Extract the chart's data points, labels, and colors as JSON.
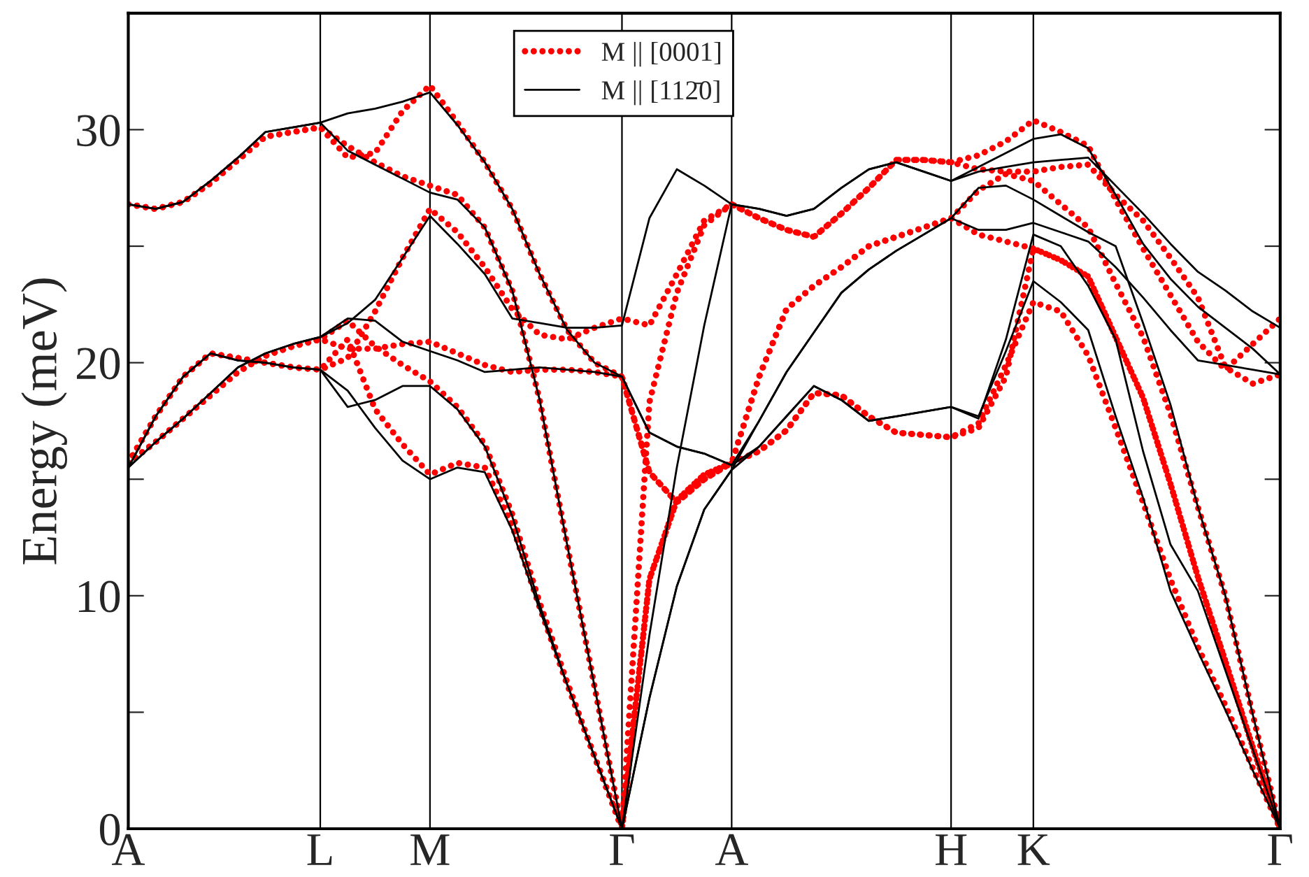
{
  "chart_data": {
    "type": "line",
    "ylabel": "Energy (meV)",
    "ylim": [
      0,
      35
    ],
    "categories": [
      "A",
      null,
      null,
      null,
      null,
      null,
      null,
      "L",
      null,
      null,
      null,
      "M",
      null,
      null,
      null,
      null,
      null,
      null,
      "Γ",
      null,
      null,
      null,
      "A",
      null,
      null,
      null,
      null,
      null,
      null,
      null,
      "H",
      null,
      null,
      "K",
      null,
      null,
      null,
      null,
      null,
      null,
      null,
      null,
      "Γ"
    ],
    "yticks": [
      0,
      {
        "value": 5,
        "label": null
      },
      10,
      {
        "value": 15,
        "label": null
      },
      20,
      {
        "value": 25,
        "label": null
      },
      30
    ],
    "legend": "top",
    "grid": "x",
    "series": [
      {
        "name": "M || [0001]",
        "color": "#ff0000",
        "line_style": "dotted",
        "values": [
          15.7,
          17.7,
          19.4,
          20.4,
          20.2,
          20.0,
          19.8,
          19.7,
          21.0,
          18.0,
          16.5,
          15.2,
          15.7,
          15.5,
          13.0,
          9.5,
          6.2,
          3.1,
          0,
          10.7,
          14.1,
          15.2,
          15.7,
          16.2,
          17.1,
          18.7,
          18.6,
          17.7,
          17.0,
          16.9,
          16.8,
          17.2,
          19.4,
          24.9,
          24.4,
          23.7,
          21.1,
          18.5,
          14.8,
          10.8,
          7.2,
          3.5,
          0
        ]
      },
      {
        "color": "#ff0000",
        "line_style": "dotted",
        "values": [
          15.7,
          17.7,
          19.4,
          20.4,
          20.2,
          20.0,
          19.8,
          19.7,
          20.2,
          22.2,
          24.5,
          26.6,
          25.6,
          24.1,
          22.3,
          21.2,
          21.0,
          21.5,
          21.9,
          21.6,
          23.8,
          26.1,
          26.8,
          26.2,
          25.7,
          25.4,
          26.4,
          27.5,
          28.7,
          28.7,
          28.6,
          28.9,
          29.5,
          30.4,
          29.9,
          29.3,
          27.0,
          24.9,
          22.9,
          20.9,
          19.7,
          20.8,
          21.9
        ]
      },
      {
        "color": "#ff0000",
        "line_style": "dotted",
        "values": [
          15.7,
          16.6,
          17.6,
          18.6,
          19.6,
          20.3,
          20.7,
          21.0,
          21.8,
          20.7,
          19.9,
          19.2,
          18.1,
          16.5,
          13.5,
          9.7,
          6.3,
          3.1,
          0,
          18.3,
          23.0,
          25.9,
          26.8,
          26.2,
          25.7,
          25.4,
          26.4,
          27.5,
          28.7,
          28.7,
          28.6,
          28.3,
          28.2,
          28.2,
          28.4,
          28.5,
          27.2,
          26.1,
          24.5,
          22.8,
          19.8,
          19.1,
          19.5
        ]
      },
      {
        "color": "#ff0000",
        "line_style": "dotted",
        "values": [
          15.7,
          16.6,
          17.6,
          18.6,
          19.6,
          20.3,
          20.7,
          21.0,
          20.6,
          20.6,
          20.8,
          20.9,
          20.4,
          19.9,
          19.6,
          19.7,
          19.7,
          19.6,
          19.4,
          15.3,
          14.0,
          15.0,
          15.7,
          19.4,
          22.3,
          23.3,
          24.1,
          25.0,
          25.4,
          25.8,
          26.2,
          27.4,
          28.1,
          27.8,
          26.8,
          25.8,
          23.4,
          21.1,
          17.8,
          13.8,
          10,
          4.9,
          0
        ]
      },
      {
        "color": "#ff0000",
        "line_style": "dotted",
        "values": [
          26.8,
          26.6,
          26.9,
          27.7,
          28.7,
          29.7,
          29.9,
          30.1,
          28.8,
          29.0,
          30.8,
          31.9,
          30.3,
          28.6,
          26.6,
          23.8,
          21.4,
          20.0,
          19.4,
          15.3,
          14.0,
          15.0,
          15.7,
          16.2,
          17.1,
          18.7,
          18.6,
          17.7,
          17.0,
          16.9,
          16.8,
          17.4,
          19.9,
          22.6,
          22.2,
          20.3,
          17.2,
          14.0,
          10.7,
          7.8,
          5.3,
          2.6,
          0
        ]
      },
      {
        "color": "#ff0000",
        "line_style": "dotted",
        "values": [
          26.8,
          26.6,
          26.9,
          27.7,
          28.7,
          29.7,
          29.9,
          30.1,
          29.3,
          28.6,
          28.0,
          27.6,
          27.2,
          25.8,
          23.1,
          18.4,
          12.2,
          6.1,
          0,
          10.7,
          14.1,
          15.2,
          15.7,
          19.4,
          22.3,
          23.3,
          24.1,
          25.0,
          25.4,
          25.8,
          26.2,
          25.5,
          25.2,
          24.9,
          24.4,
          23.7,
          21.1,
          18.5,
          14.8,
          10.8,
          7.2,
          3.5,
          0
        ]
      },
      {
        "name": "M || [112̄0]",
        "color": "#000000",
        "line_style": "solid",
        "values": [
          15.5,
          17.7,
          19.4,
          20.4,
          20.1,
          20.0,
          19.8,
          19.7,
          18.8,
          17.2,
          15.8,
          15.0,
          15.5,
          15.3,
          12.8,
          9.4,
          6.2,
          3.1,
          0,
          5.6,
          10.4,
          13.7,
          15.4,
          16.4,
          17.7,
          19.0,
          18.4,
          17.5,
          17.7,
          17.9,
          18.1,
          17.6,
          21.0,
          25.5,
          25.0,
          23.3,
          21.0,
          16.2,
          12.2,
          10.2,
          6.8,
          3.4,
          0
        ]
      },
      {
        "color": "#000000",
        "line_style": "solid",
        "values": [
          15.5,
          17.7,
          19.4,
          20.4,
          20.1,
          20.0,
          19.8,
          19.7,
          18.1,
          18.4,
          19.0,
          19.0,
          18.0,
          16.4,
          13.4,
          9.6,
          6.2,
          3.1,
          0,
          8.3,
          15.5,
          21.6,
          26.8,
          26.6,
          26.3,
          26.6,
          27.5,
          28.3,
          28.6,
          28.2,
          27.8,
          28.4,
          29.0,
          29.6,
          29.8,
          29.2,
          27.2,
          25.1,
          23.6,
          22.4,
          21.5,
          20.6,
          19.5
        ]
      },
      {
        "color": "#000000",
        "line_style": "solid",
        "values": [
          15.5,
          16.6,
          17.6,
          18.7,
          19.8,
          20.4,
          20.8,
          21.1,
          21.7,
          22.7,
          24.5,
          26.3,
          25.1,
          23.8,
          21.9,
          21.7,
          21.5,
          21.5,
          21.6,
          26.2,
          28.3,
          27.6,
          26.8,
          26.6,
          26.3,
          26.6,
          27.5,
          28.3,
          28.6,
          28.2,
          27.8,
          28.2,
          28.4,
          28.6,
          28.7,
          28.8,
          27.6,
          26.4,
          25.1,
          23.9,
          23.1,
          22.2,
          21.5
        ]
      },
      {
        "color": "#000000",
        "line_style": "solid",
        "values": [
          15.5,
          16.6,
          17.6,
          18.7,
          19.8,
          20.4,
          20.8,
          21.1,
          21.9,
          21.8,
          20.9,
          20.5,
          20.1,
          19.6,
          19.7,
          19.8,
          19.7,
          19.6,
          19.4,
          17.0,
          16.4,
          16.1,
          15.6,
          17.5,
          19.6,
          21.3,
          23.0,
          24.0,
          24.8,
          25.5,
          26.2,
          27.5,
          27.6,
          27.0,
          26.3,
          25.6,
          25.0,
          21.7,
          18.2,
          13.8,
          10,
          4.9,
          0
        ]
      },
      {
        "color": "#000000",
        "line_style": "solid",
        "values": [
          26.8,
          26.6,
          26.9,
          27.8,
          28.8,
          29.9,
          30.1,
          30.3,
          30.7,
          30.9,
          31.2,
          31.6,
          30.2,
          28.6,
          26.6,
          23.8,
          21.4,
          20.0,
          19.4,
          17.0,
          16.4,
          16.1,
          15.6,
          16.4,
          17.7,
          19.0,
          18.4,
          17.5,
          17.7,
          17.9,
          18.1,
          17.7,
          20.5,
          23.5,
          22.6,
          21.4,
          17.7,
          14.2,
          10.2,
          7.6,
          5.1,
          2.5,
          0
        ]
      },
      {
        "color": "#000000",
        "line_style": "solid",
        "values": [
          26.8,
          26.6,
          26.9,
          27.8,
          28.8,
          29.9,
          30.1,
          30.3,
          29.1,
          28.5,
          27.9,
          27.3,
          27.0,
          25.8,
          23.1,
          18.4,
          12.2,
          6.1,
          0,
          5.6,
          10.4,
          13.7,
          15.4,
          17.5,
          19.6,
          21.3,
          23.0,
          24.0,
          24.8,
          25.5,
          26.2,
          25.7,
          25.7,
          26.0,
          25.6,
          25.2,
          24.1,
          22.8,
          21.4,
          20.1,
          19.9,
          19.7,
          19.5
        ]
      }
    ]
  }
}
